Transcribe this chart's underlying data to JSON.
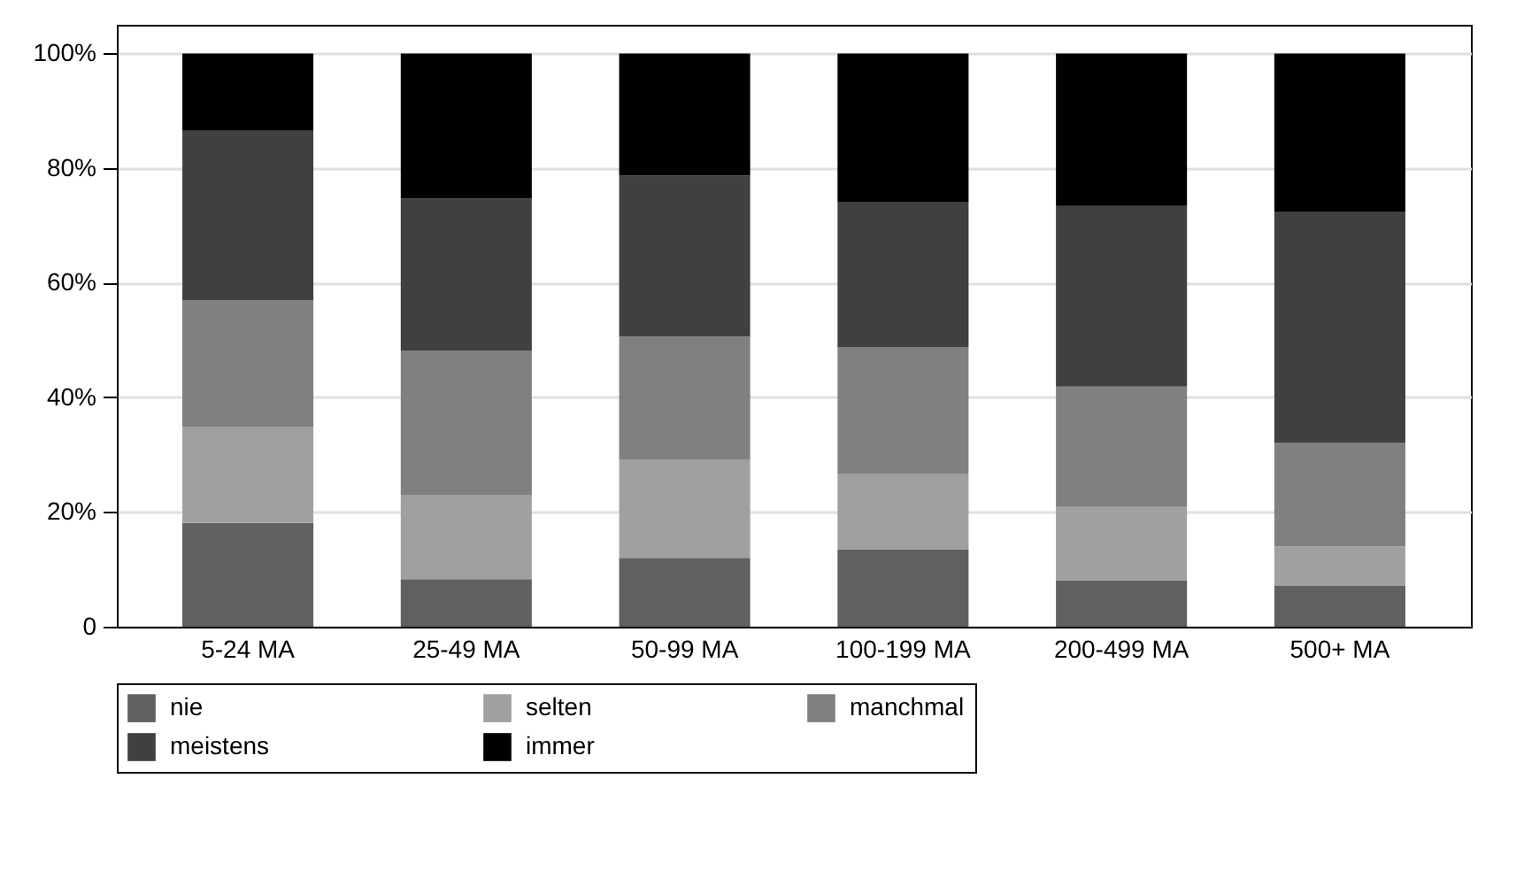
{
  "chart_data": {
    "type": "bar",
    "stacked": true,
    "categories": [
      "5-24 MA",
      "25-49 MA",
      "50-99 MA",
      "100-199 MA",
      "200-499 MA",
      "500+ MA"
    ],
    "series": [
      {
        "name": "nie",
        "color": "#606060",
        "values": [
          18.1,
          8.3,
          12.0,
          13.5,
          8.1,
          7.1
        ]
      },
      {
        "name": "selten",
        "color": "#a0a0a0",
        "values": [
          16.8,
          14.7,
          17.2,
          13.1,
          12.8,
          6.9
        ]
      },
      {
        "name": "manchmal",
        "color": "#808080",
        "values": [
          22.0,
          25.1,
          21.4,
          22.2,
          21.0,
          18.1
        ]
      },
      {
        "name": "meistens",
        "color": "#404040",
        "values": [
          29.6,
          26.6,
          28.1,
          25.3,
          31.5,
          40.3
        ]
      },
      {
        "name": "immer",
        "color": "#000000",
        "values": [
          13.5,
          25.3,
          21.3,
          25.9,
          26.6,
          27.6
        ]
      }
    ],
    "ylim": [
      0,
      105
    ],
    "yticks": [
      0,
      {
        "value": 20,
        "label": "20%"
      },
      {
        "value": 40,
        "label": "40%"
      },
      {
        "value": 60,
        "label": "60%"
      },
      {
        "value": 80,
        "label": "80%"
      },
      {
        "value": 100,
        "label": "100%"
      }
    ],
    "grid": "y",
    "legend": "bottom"
  }
}
